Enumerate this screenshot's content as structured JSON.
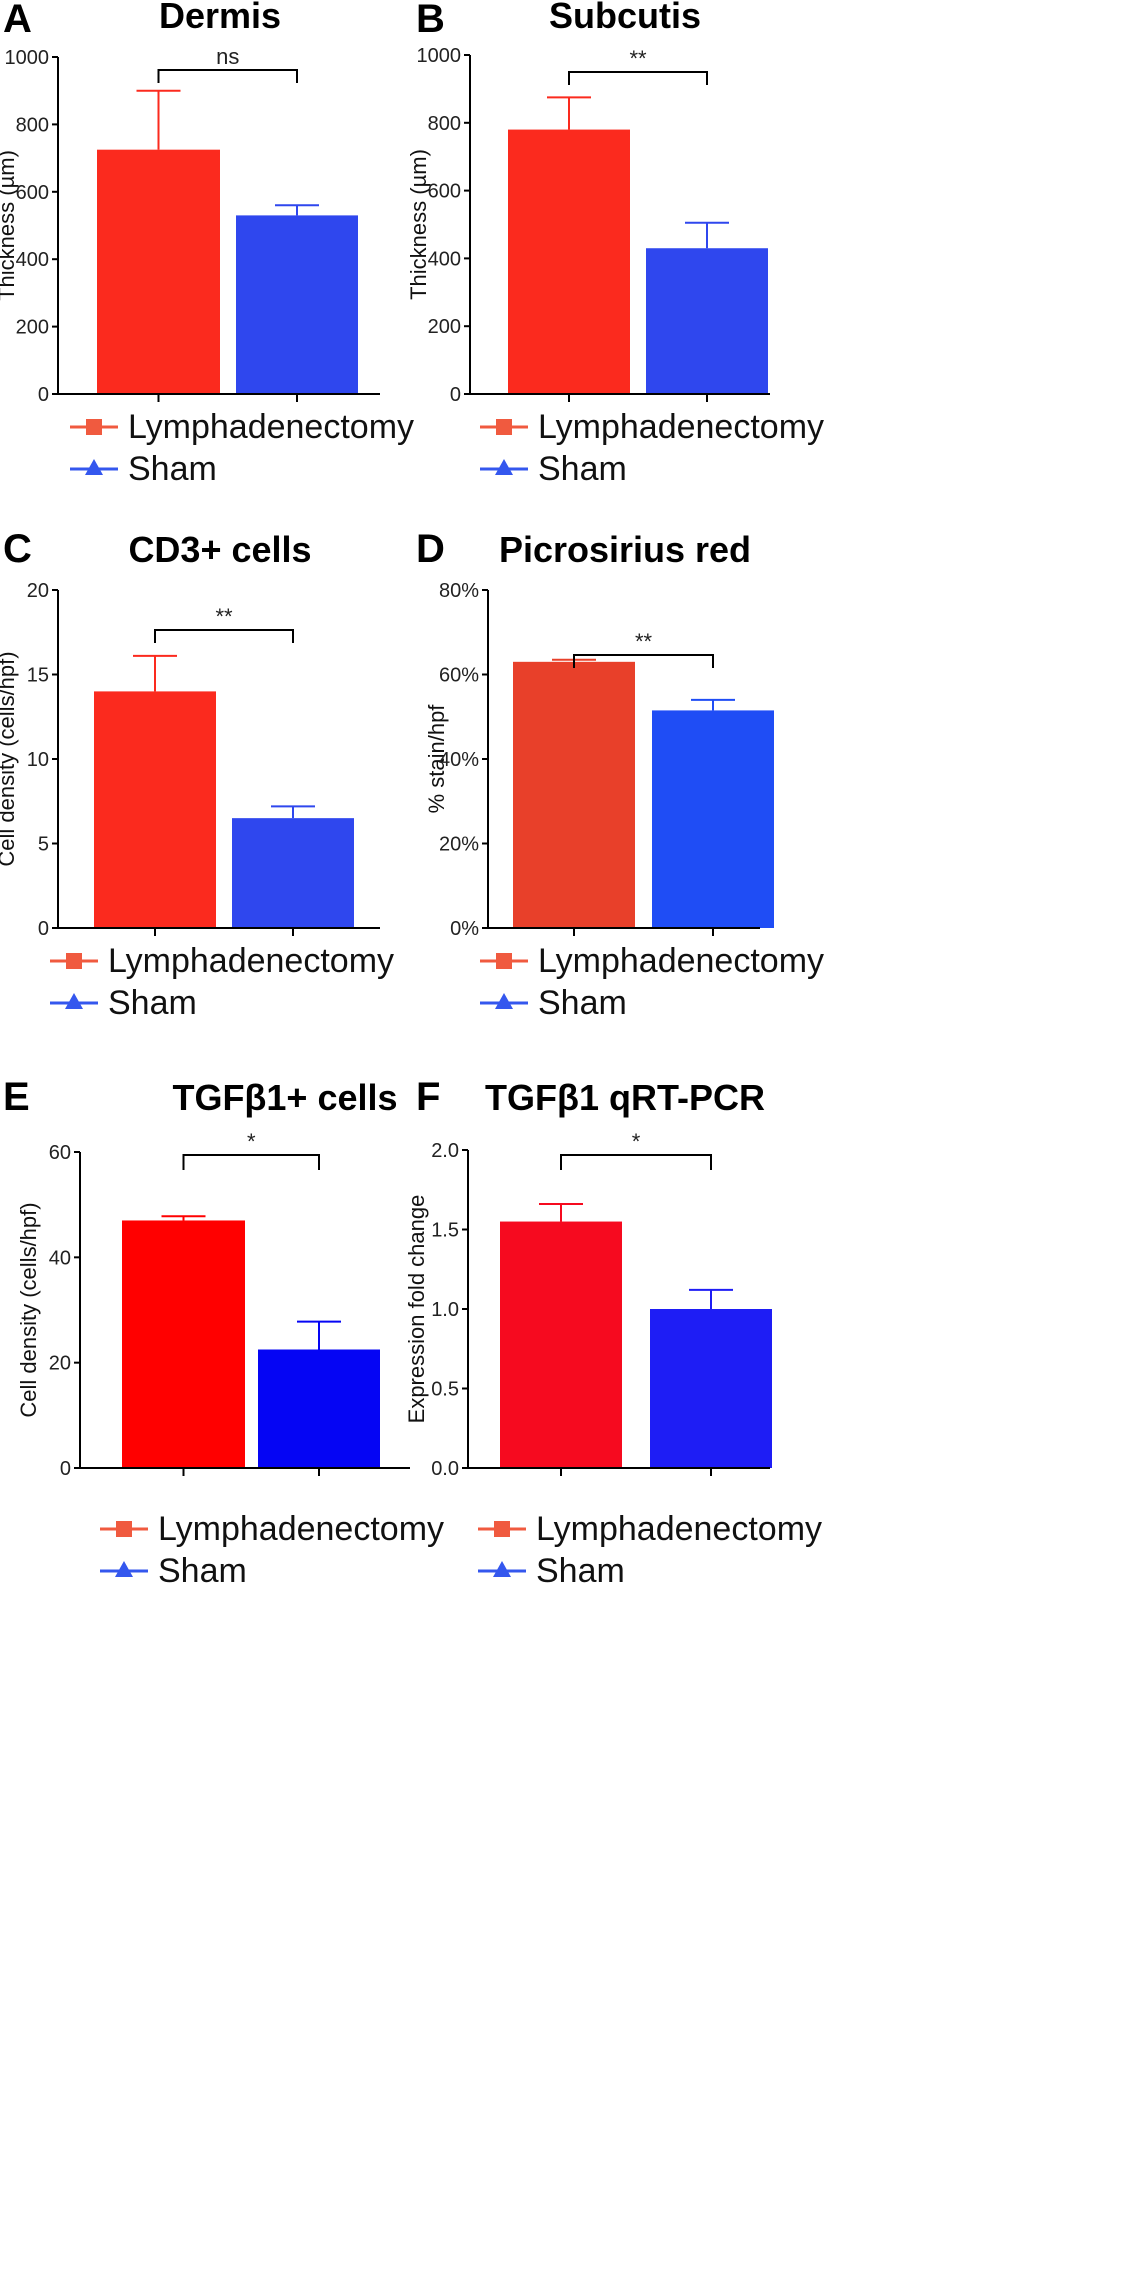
{
  "figure_name": "multi-panel bar charts",
  "legend": {
    "items": [
      {
        "label": "Lymphadenectomy",
        "marker": "square"
      },
      {
        "label": "Sham",
        "marker": "triangle"
      }
    ]
  },
  "chart_data": [
    {
      "panel": "A",
      "type": "bar",
      "title": "Dermis",
      "ylabel": "Thickness (µm)",
      "xlabel": "",
      "categories": [
        "Lymphadenectomy",
        "Sham"
      ],
      "values": [
        725,
        530
      ],
      "errors": [
        175,
        30
      ],
      "colors": [
        "#fb2a1e",
        "#2f47ee"
      ],
      "ylim": [
        0,
        1000
      ],
      "yticks": [
        0,
        200,
        400,
        600,
        800,
        1000
      ],
      "tick_format": "int",
      "significance": "ns"
    },
    {
      "panel": "B",
      "type": "bar",
      "title": "Subcutis",
      "ylabel": "Thickness (µm)",
      "xlabel": "",
      "categories": [
        "Lymphadenectomy",
        "Sham"
      ],
      "values": [
        780,
        430
      ],
      "errors": [
        95,
        75
      ],
      "colors": [
        "#fb2a1e",
        "#2f47ee"
      ],
      "ylim": [
        0,
        1000
      ],
      "yticks": [
        0,
        200,
        400,
        600,
        800,
        1000
      ],
      "tick_format": "int",
      "significance": "**"
    },
    {
      "panel": "C",
      "type": "bar",
      "title": "CD3+ cells",
      "ylabel": "Cell density (cells/hpf)",
      "xlabel": "",
      "categories": [
        "Lymphadenectomy",
        "Sham"
      ],
      "values": [
        14.0,
        6.5
      ],
      "errors": [
        2.1,
        0.7
      ],
      "colors": [
        "#fb2a1e",
        "#2f47ee"
      ],
      "ylim": [
        0,
        20
      ],
      "yticks": [
        0,
        5,
        10,
        15,
        20
      ],
      "tick_format": "int",
      "significance": "**"
    },
    {
      "panel": "D",
      "type": "bar",
      "title": "Picrosirius red",
      "ylabel": "% stain/hpf",
      "xlabel": "",
      "categories": [
        "Lymphadenectomy",
        "Sham"
      ],
      "values": [
        0.63,
        0.515
      ],
      "errors": [
        0.005,
        0.025
      ],
      "colors": [
        "#e8402a",
        "#1f4df5"
      ],
      "ylim": [
        0,
        0.8
      ],
      "yticks": [
        0,
        0.2,
        0.4,
        0.6,
        0.8
      ],
      "tick_format": "percent",
      "significance": "**"
    },
    {
      "panel": "E",
      "type": "bar",
      "title": "TGFβ1+ cells",
      "ylabel": "Cell density (cells/hpf)",
      "xlabel": "",
      "categories": [
        "Lymphadenectomy",
        "Sham"
      ],
      "values": [
        47,
        22.5
      ],
      "errors": [
        0.8,
        5.3
      ],
      "colors": [
        "#ff0000",
        "#0505f4"
      ],
      "ylim": [
        0,
        60
      ],
      "yticks": [
        0,
        20,
        40,
        60
      ],
      "tick_format": "int",
      "significance": "*"
    },
    {
      "panel": "F",
      "type": "bar",
      "title": "TGFβ1 qRT-PCR",
      "ylabel": "Expression fold change",
      "xlabel": "",
      "categories": [
        "Lymphadenectomy",
        "Sham"
      ],
      "values": [
        1.55,
        1.0
      ],
      "errors": [
        0.11,
        0.12
      ],
      "colors": [
        "#f60a1f",
        "#1e1df5"
      ],
      "ylim": [
        0,
        2.0
      ],
      "yticks": [
        0,
        0.5,
        1.0,
        1.5,
        2.0
      ],
      "tick_format": "one_decimal",
      "significance": "*"
    }
  ],
  "colors": {
    "lymph_legend": "#f05a3f",
    "sham_legend": "#3457ee",
    "axis": "#000000"
  }
}
